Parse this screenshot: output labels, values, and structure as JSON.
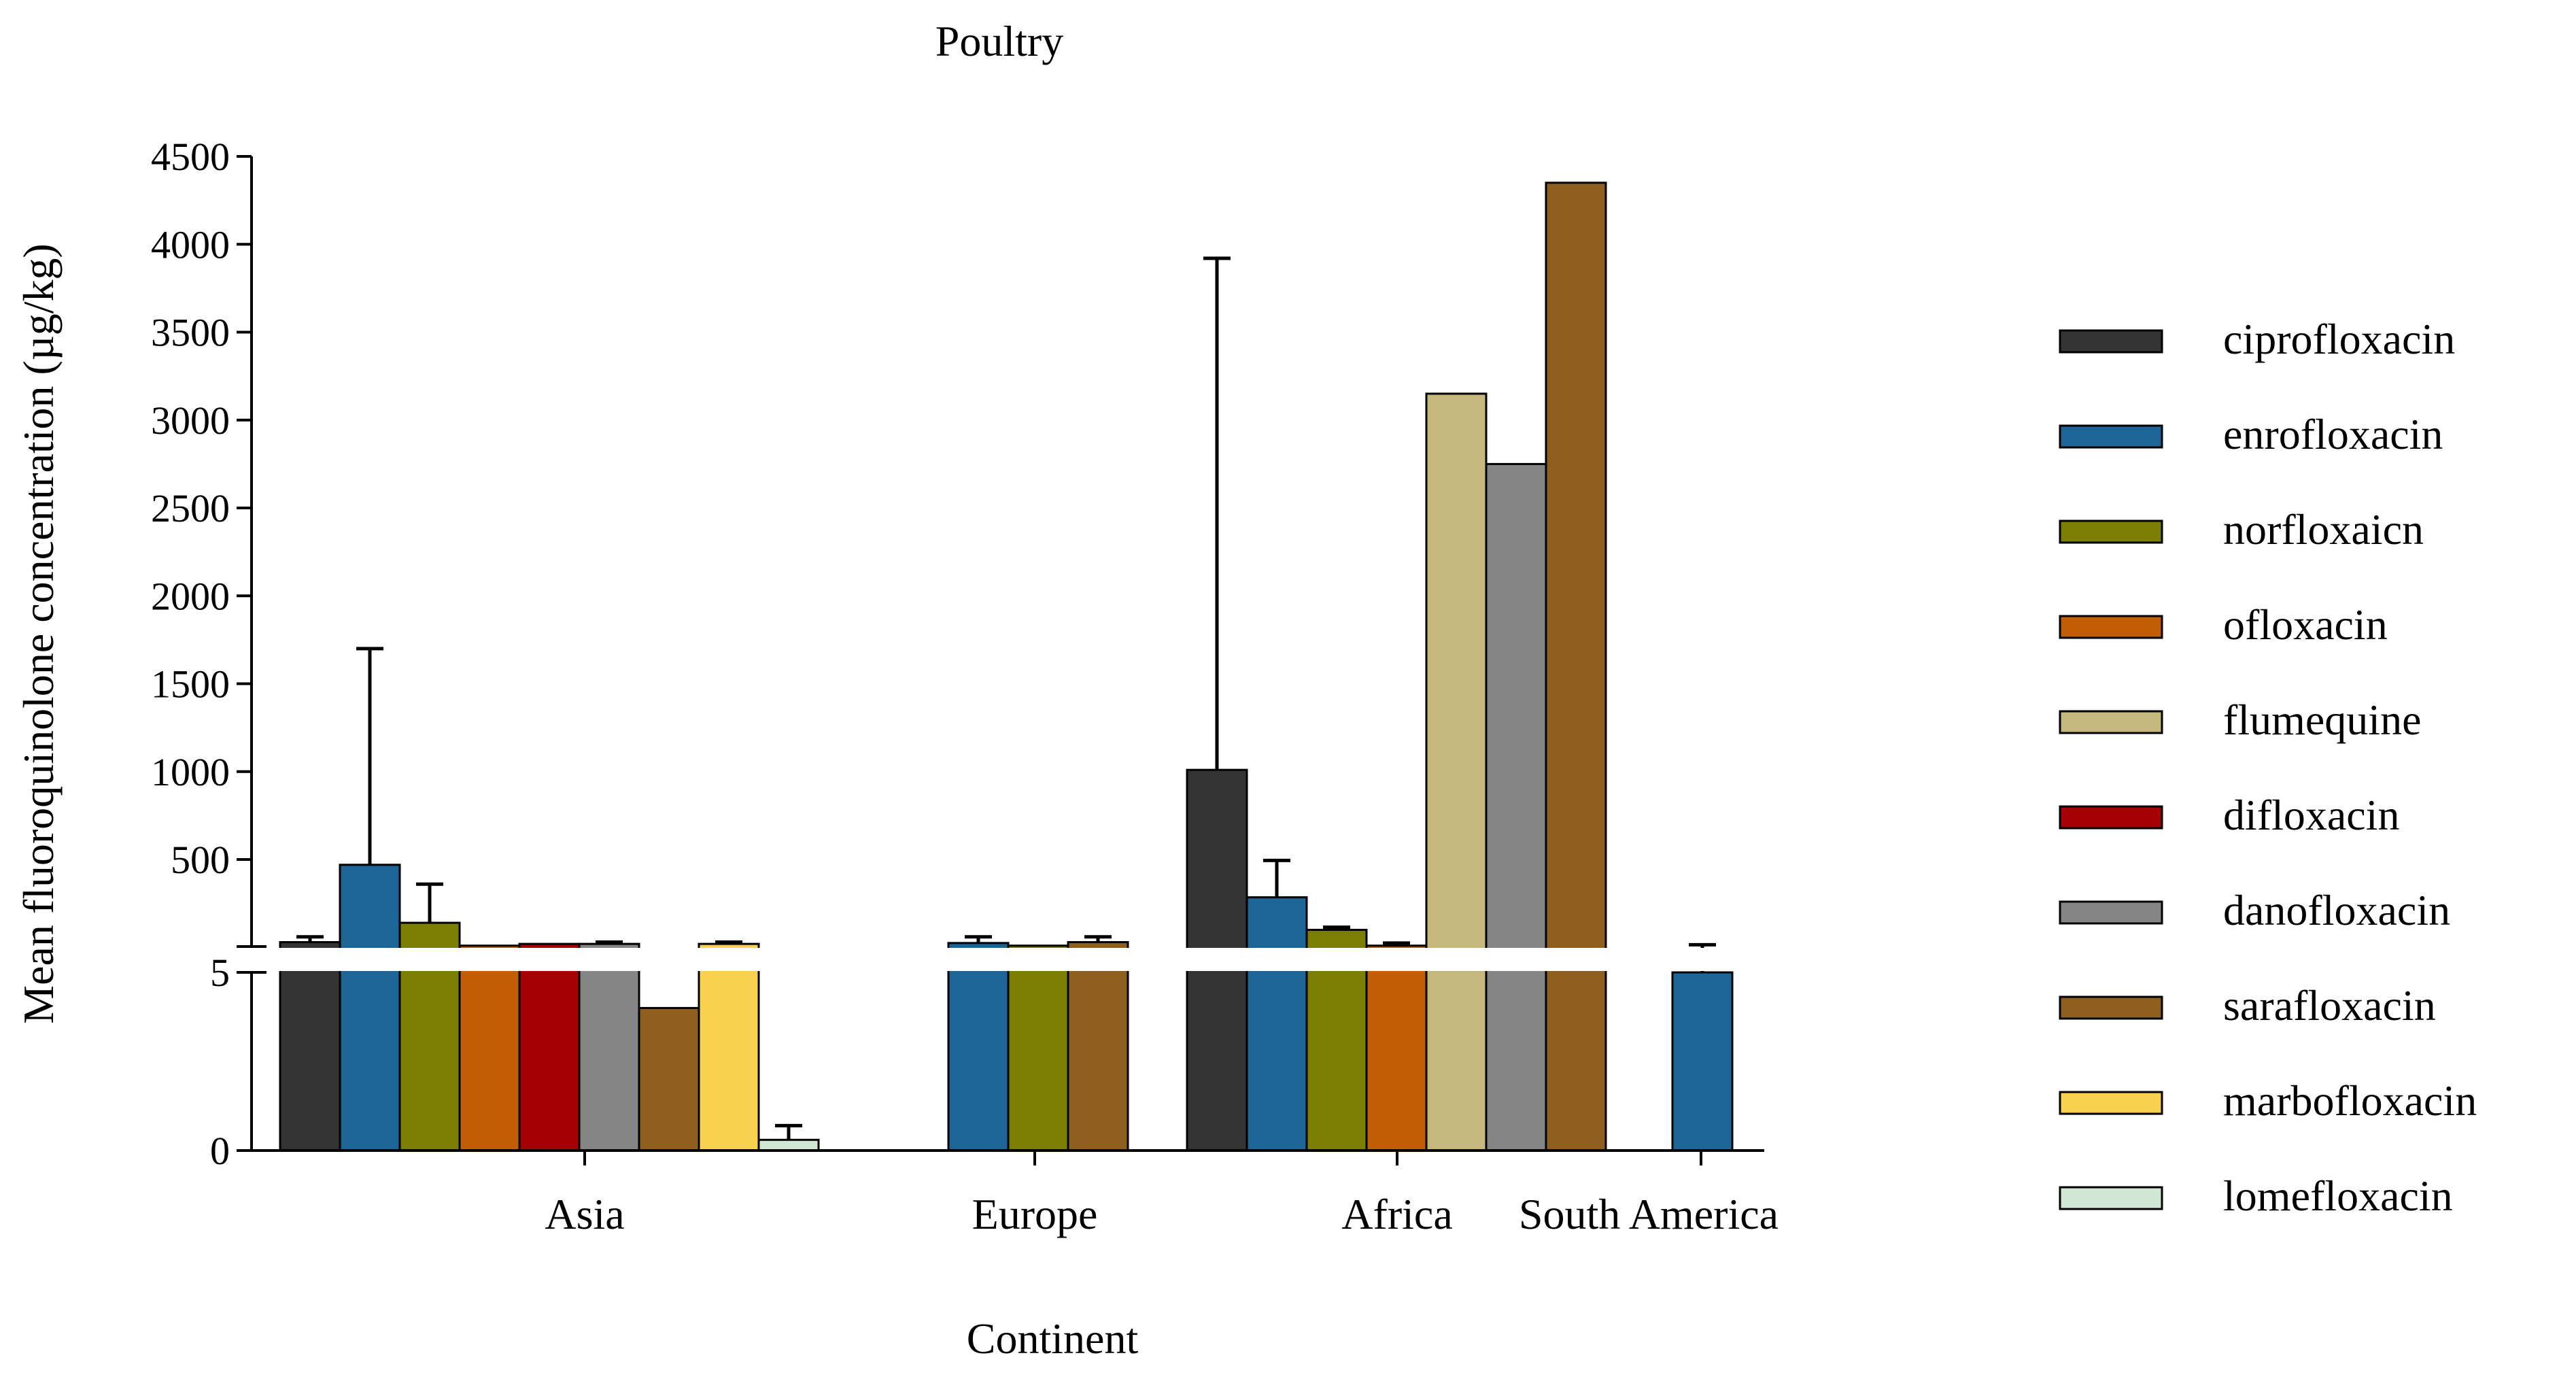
{
  "chart_data": {
    "type": "bar",
    "title": "Poultry",
    "xlabel": "Continent",
    "ylabel": "Mean fluoroquinolone concentration (µg/kg)",
    "categories": [
      "Asia",
      "Europe",
      "Africa",
      "South America"
    ],
    "axis_break": {
      "lower_range": [
        0,
        5
      ],
      "upper_range": [
        5,
        4500
      ]
    },
    "lower_ticks": [
      "0",
      "5"
    ],
    "upper_ticks": [
      "500",
      "1000",
      "1500",
      "2000",
      "2500",
      "3000",
      "3500",
      "4000",
      "4500"
    ],
    "legend_position": "right",
    "series": [
      {
        "name": "ciprofloxacin",
        "color": "#333333",
        "values": [
          30,
          null,
          1010,
          null
        ],
        "errors": [
          60,
          null,
          3920,
          null
        ]
      },
      {
        "name": "enrofloxacin",
        "color": "#1c6596",
        "values": [
          470,
          25,
          285,
          5
        ],
        "errors": [
          1700,
          60,
          495,
          15
        ]
      },
      {
        "name": "norfloxaicn",
        "color": "#7a7f04",
        "values": [
          140,
          10,
          100,
          null
        ],
        "errors": [
          360,
          null,
          115,
          null
        ]
      },
      {
        "name": "ofloxacin",
        "color": "#c25e06",
        "values": [
          10,
          null,
          10,
          null
        ],
        "errors": [
          null,
          null,
          25,
          null
        ]
      },
      {
        "name": "flumequine",
        "color": "#c4b87c",
        "values": [
          null,
          null,
          3150,
          null
        ],
        "errors": [
          null,
          null,
          null,
          null
        ]
      },
      {
        "name": "difloxacin",
        "color": "#a50004",
        "values": [
          20,
          null,
          null,
          null
        ],
        "errors": [
          null,
          null,
          null,
          null
        ]
      },
      {
        "name": "danofloxacin",
        "color": "#858585",
        "values": [
          20,
          null,
          2750,
          null
        ],
        "errors": [
          30,
          null,
          null,
          null
        ]
      },
      {
        "name": "sarafloxacin",
        "color": "#8f5f20",
        "values": [
          4,
          30,
          4350,
          null
        ],
        "errors": [
          null,
          60,
          null,
          null
        ]
      },
      {
        "name": "marbofloxacin",
        "color": "#f8d14f",
        "values": [
          20,
          null,
          null,
          null
        ],
        "errors": [
          30,
          null,
          null,
          null
        ]
      },
      {
        "name": "lomefloxacin",
        "color": "#d0e7d3",
        "values": [
          0.3,
          null,
          null,
          null
        ],
        "errors": [
          0.7,
          null,
          null,
          null
        ]
      }
    ]
  }
}
